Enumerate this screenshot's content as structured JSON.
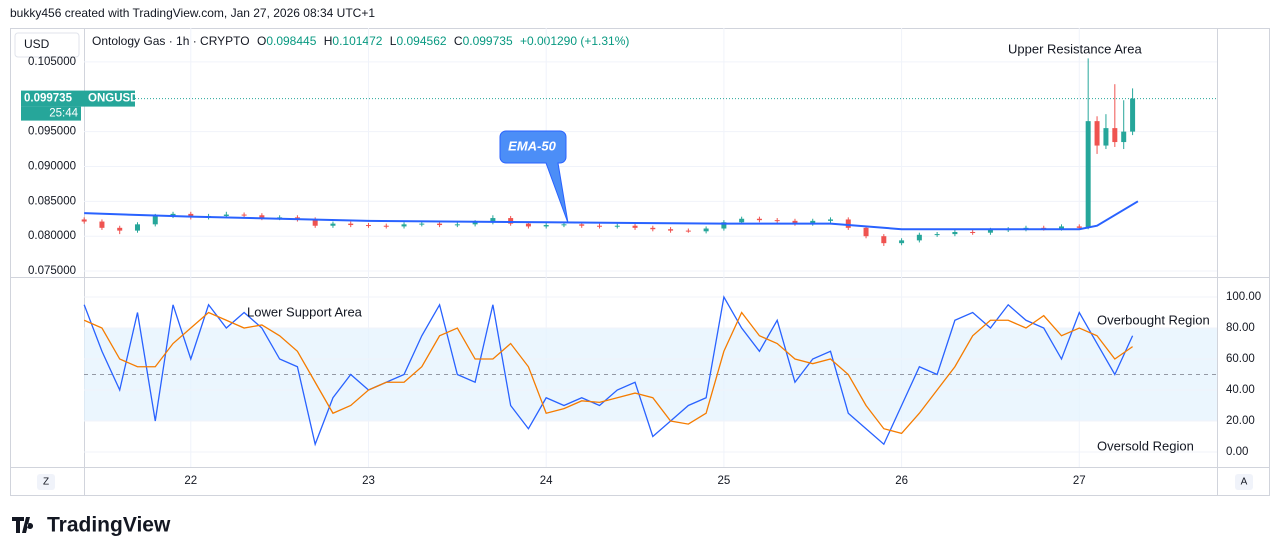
{
  "header": {
    "credit": "bukky456 created with TradingView.com, Jan 27, 2026 08:34 UTC+1",
    "currency": "USD",
    "symbol": "Ontology Gas · 1h · CRYPTO",
    "ohlc": [
      {
        "key": "O",
        "value": "0.098445"
      },
      {
        "key": "H",
        "value": "0.101472"
      },
      {
        "key": "L",
        "value": "0.094562"
      },
      {
        "key": "C",
        "value": "0.099735"
      }
    ],
    "change": "+0.001290 (+1.31%)",
    "left_button": "Z",
    "right_button": "A",
    "brand": "TradingView"
  },
  "chart_data": [
    {
      "type": "candlestick",
      "up_color": "#26a69a",
      "down_color": "#ef5350",
      "x": [
        21.4,
        21.5,
        21.6,
        21.7,
        21.8,
        21.9,
        22.0,
        22.1,
        22.2,
        22.3,
        22.4,
        22.5,
        22.6,
        22.7,
        22.8,
        22.9,
        23.0,
        23.1,
        23.2,
        23.3,
        23.4,
        23.5,
        23.6,
        23.7,
        23.8,
        23.9,
        24.0,
        24.1,
        24.2,
        24.3,
        24.4,
        24.5,
        24.6,
        24.7,
        24.8,
        24.9,
        25.0,
        25.1,
        25.2,
        25.3,
        25.4,
        25.5,
        25.6,
        25.7,
        25.8,
        25.9,
        26.0,
        26.1,
        26.2,
        26.3,
        26.4,
        26.5,
        26.6,
        26.7,
        26.8,
        26.9,
        27.0,
        27.05,
        27.1,
        27.15,
        27.2,
        27.25,
        27.3
      ],
      "open": [
        0.0824,
        0.0821,
        0.0812,
        0.0808,
        0.0817,
        0.0829,
        0.0832,
        0.0827,
        0.0829,
        0.0831,
        0.083,
        0.0826,
        0.0827,
        0.0824,
        0.0815,
        0.0818,
        0.0816,
        0.0815,
        0.0814,
        0.0817,
        0.0818,
        0.0816,
        0.0817,
        0.082,
        0.0826,
        0.0818,
        0.0814,
        0.0816,
        0.0817,
        0.0815,
        0.0814,
        0.0815,
        0.0812,
        0.081,
        0.0808,
        0.0807,
        0.0811,
        0.082,
        0.0825,
        0.0823,
        0.0822,
        0.0818,
        0.0822,
        0.0824,
        0.0812,
        0.08,
        0.079,
        0.0794,
        0.0802,
        0.0803,
        0.0806,
        0.0805,
        0.0809,
        0.081,
        0.0812,
        0.0811,
        0.0814,
        0.0812,
        0.0965,
        0.093,
        0.0955,
        0.0935,
        0.095
      ],
      "high": [
        0.0827,
        0.0824,
        0.0815,
        0.082,
        0.0832,
        0.0835,
        0.0835,
        0.0832,
        0.0835,
        0.0834,
        0.0833,
        0.083,
        0.083,
        0.0827,
        0.0821,
        0.0821,
        0.0819,
        0.0818,
        0.082,
        0.0821,
        0.0821,
        0.082,
        0.0823,
        0.083,
        0.0829,
        0.0821,
        0.0819,
        0.082,
        0.082,
        0.0818,
        0.0818,
        0.0818,
        0.0815,
        0.0813,
        0.0811,
        0.0814,
        0.0823,
        0.0828,
        0.0828,
        0.0826,
        0.0825,
        0.0825,
        0.0827,
        0.0827,
        0.0815,
        0.0803,
        0.0797,
        0.0805,
        0.0806,
        0.0809,
        0.0809,
        0.0812,
        0.0813,
        0.0815,
        0.0815,
        0.0817,
        0.0817,
        0.1055,
        0.0972,
        0.0975,
        0.1018,
        0.0995,
        0.1012
      ],
      "low": [
        0.0818,
        0.0809,
        0.0803,
        0.0805,
        0.0814,
        0.0826,
        0.0824,
        0.0824,
        0.0826,
        0.0827,
        0.0823,
        0.0823,
        0.0821,
        0.0812,
        0.0812,
        0.0813,
        0.0812,
        0.0811,
        0.0811,
        0.0814,
        0.0813,
        0.0813,
        0.0814,
        0.0817,
        0.0815,
        0.0811,
        0.0811,
        0.0813,
        0.0812,
        0.0811,
        0.0811,
        0.0809,
        0.0807,
        0.0805,
        0.0805,
        0.0804,
        0.0808,
        0.0817,
        0.082,
        0.0819,
        0.0815,
        0.0815,
        0.0819,
        0.0809,
        0.0797,
        0.0786,
        0.0787,
        0.0791,
        0.0799,
        0.08,
        0.0802,
        0.0802,
        0.0806,
        0.0807,
        0.0808,
        0.0808,
        0.0809,
        0.081,
        0.0918,
        0.0925,
        0.0928,
        0.0925,
        0.0945
      ],
      "close": [
        0.0821,
        0.0812,
        0.0808,
        0.0817,
        0.0829,
        0.0832,
        0.0827,
        0.0829,
        0.0831,
        0.083,
        0.0826,
        0.0827,
        0.0824,
        0.0815,
        0.0818,
        0.0816,
        0.0815,
        0.0814,
        0.0817,
        0.0818,
        0.0816,
        0.0817,
        0.082,
        0.0826,
        0.0818,
        0.0814,
        0.0816,
        0.0817,
        0.0815,
        0.0814,
        0.0815,
        0.0812,
        0.081,
        0.0808,
        0.0807,
        0.0811,
        0.082,
        0.0825,
        0.0823,
        0.0822,
        0.0818,
        0.0822,
        0.0824,
        0.0812,
        0.08,
        0.079,
        0.0794,
        0.0802,
        0.0803,
        0.0806,
        0.0805,
        0.0809,
        0.081,
        0.0812,
        0.0811,
        0.0814,
        0.0812,
        0.0965,
        0.093,
        0.0955,
        0.0935,
        0.095,
        0.099735
      ],
      "ema": {
        "color": "#2962ff",
        "x": [
          21.4,
          22.0,
          23.0,
          24.0,
          25.0,
          25.6,
          26.0,
          26.5,
          27.0,
          27.1,
          27.33
        ],
        "values": [
          0.0833,
          0.0828,
          0.0822,
          0.082,
          0.0818,
          0.0818,
          0.081,
          0.081,
          0.081,
          0.0815,
          0.085
        ]
      },
      "last_price": 0.099735,
      "last_symbol": "ONGUSD",
      "countdown": "25:44",
      "last_color": "#26a69a",
      "xlim": [
        21.399,
        27.775
      ],
      "xticks": [
        22,
        23,
        24,
        25,
        26,
        27
      ],
      "ylim": [
        0.07429,
        0.10986
      ],
      "yticks": [
        {
          "value": 0.075,
          "label": "0.075000"
        },
        {
          "value": 0.08,
          "label": "0.080000"
        },
        {
          "value": 0.085,
          "label": "0.085000"
        },
        {
          "value": 0.09,
          "label": "0.090000"
        },
        {
          "value": 0.095,
          "label": "0.095000"
        },
        {
          "value": 0.105,
          "label": "0.105000"
        }
      ],
      "annotations": [
        "Upper Resistance Area",
        "EMA-50"
      ]
    },
    {
      "type": "line",
      "x": [
        21.4,
        21.5,
        21.6,
        21.7,
        21.8,
        21.9,
        22.0,
        22.1,
        22.2,
        22.3,
        22.4,
        22.5,
        22.6,
        22.7,
        22.8,
        22.9,
        23.0,
        23.1,
        23.2,
        23.3,
        23.4,
        23.5,
        23.6,
        23.7,
        23.8,
        23.9,
        24.0,
        24.1,
        24.2,
        24.3,
        24.4,
        24.5,
        24.6,
        24.7,
        24.8,
        24.9,
        25.0,
        25.1,
        25.2,
        25.3,
        25.4,
        25.5,
        25.6,
        25.7,
        25.8,
        25.9,
        26.0,
        26.1,
        26.2,
        26.3,
        26.4,
        26.5,
        26.6,
        26.7,
        26.8,
        26.9,
        27.0,
        27.1,
        27.2,
        27.3
      ],
      "series": [
        {
          "color": "#2962ff",
          "values": [
            95,
            65,
            40,
            90,
            20,
            95,
            60,
            95,
            80,
            90,
            80,
            60,
            55,
            5,
            35,
            50,
            40,
            45,
            50,
            75,
            95,
            50,
            45,
            95,
            30,
            15,
            35,
            30,
            35,
            30,
            40,
            45,
            10,
            20,
            30,
            35,
            100,
            80,
            65,
            85,
            45,
            60,
            65,
            25,
            15,
            5,
            30,
            55,
            50,
            85,
            90,
            80,
            95,
            85,
            80,
            60,
            90,
            70,
            50,
            75
          ]
        },
        {
          "color": "#f57c00",
          "values": [
            85,
            80,
            60,
            55,
            55,
            70,
            80,
            90,
            85,
            80,
            82,
            75,
            65,
            45,
            25,
            30,
            40,
            45,
            45,
            55,
            75,
            80,
            60,
            60,
            70,
            55,
            25,
            28,
            33,
            32,
            35,
            38,
            35,
            20,
            18,
            25,
            65,
            90,
            75,
            70,
            60,
            57,
            60,
            50,
            30,
            15,
            12,
            25,
            40,
            55,
            75,
            85,
            85,
            80,
            88,
            75,
            80,
            75,
            60,
            68
          ]
        }
      ],
      "band": [
        20,
        80
      ],
      "band_color": "#e3f2fd",
      "hlines": [
        80,
        50,
        20
      ],
      "xlim": [
        21.399,
        27.775
      ],
      "ylim": [
        -9.7,
        111
      ],
      "yticks": [
        {
          "value": 0,
          "label": "0.00"
        },
        {
          "value": 20,
          "label": "20.00"
        },
        {
          "value": 40,
          "label": "40.00"
        },
        {
          "value": 60,
          "label": "60.00"
        },
        {
          "value": 80,
          "label": "80.00"
        },
        {
          "value": 100,
          "label": "100.00"
        }
      ],
      "annotations": [
        "Lower Support Area",
        "Overbought Region",
        "Oversold Region"
      ]
    }
  ]
}
